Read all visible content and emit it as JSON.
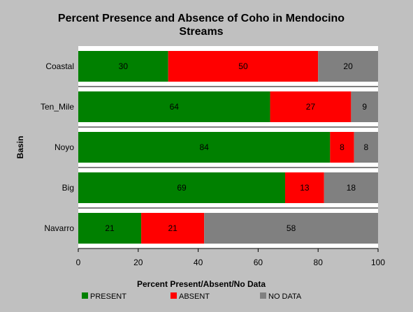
{
  "chart_data": {
    "type": "bar",
    "orientation": "horizontal",
    "stacked": true,
    "title": "Percent Presence and Absence of Coho in Mendocino Streams",
    "title_lines": [
      "Percent Presence and Absence of Coho in Mendocino",
      "Streams"
    ],
    "xlabel": "Percent Present/Absent/No Data",
    "ylabel": "Basin",
    "xlim": [
      0,
      100
    ],
    "xticks": [
      0,
      20,
      40,
      60,
      80,
      100
    ],
    "categories": [
      "Coastal",
      "Ten_Mile",
      "Noyo",
      "Big",
      "Navarro"
    ],
    "series": [
      {
        "name": "PRESENT",
        "color": "#008000",
        "values": [
          30,
          64,
          84,
          69,
          21
        ]
      },
      {
        "name": "ABSENT",
        "color": "#ff0000",
        "values": [
          50,
          27,
          8,
          13,
          21
        ]
      },
      {
        "name": "NO DATA",
        "color": "#808080",
        "values": [
          20,
          9,
          8,
          18,
          58
        ]
      }
    ],
    "legend_position": "bottom",
    "grid": false
  }
}
